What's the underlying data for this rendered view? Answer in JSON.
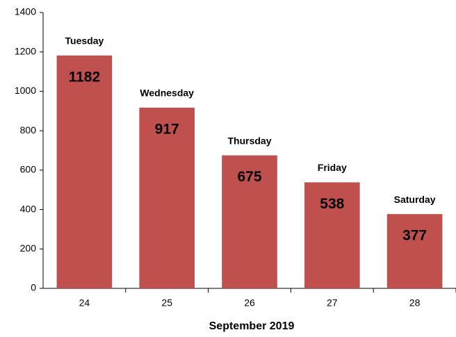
{
  "chart_data": {
    "type": "bar",
    "x_label": "September 2019",
    "categories": [
      "24",
      "25",
      "26",
      "27",
      "28"
    ],
    "values": [
      1182,
      917,
      675,
      538,
      377
    ],
    "bar_labels": [
      "Tuesday",
      "Wednesday",
      "Thursday",
      "Friday",
      "Saturday"
    ],
    "color": "#c0504d",
    "ylim": [
      0,
      1400
    ],
    "yticks": [
      0,
      200,
      400,
      600,
      800,
      1000,
      1200,
      1400
    ],
    "grid": false
  }
}
